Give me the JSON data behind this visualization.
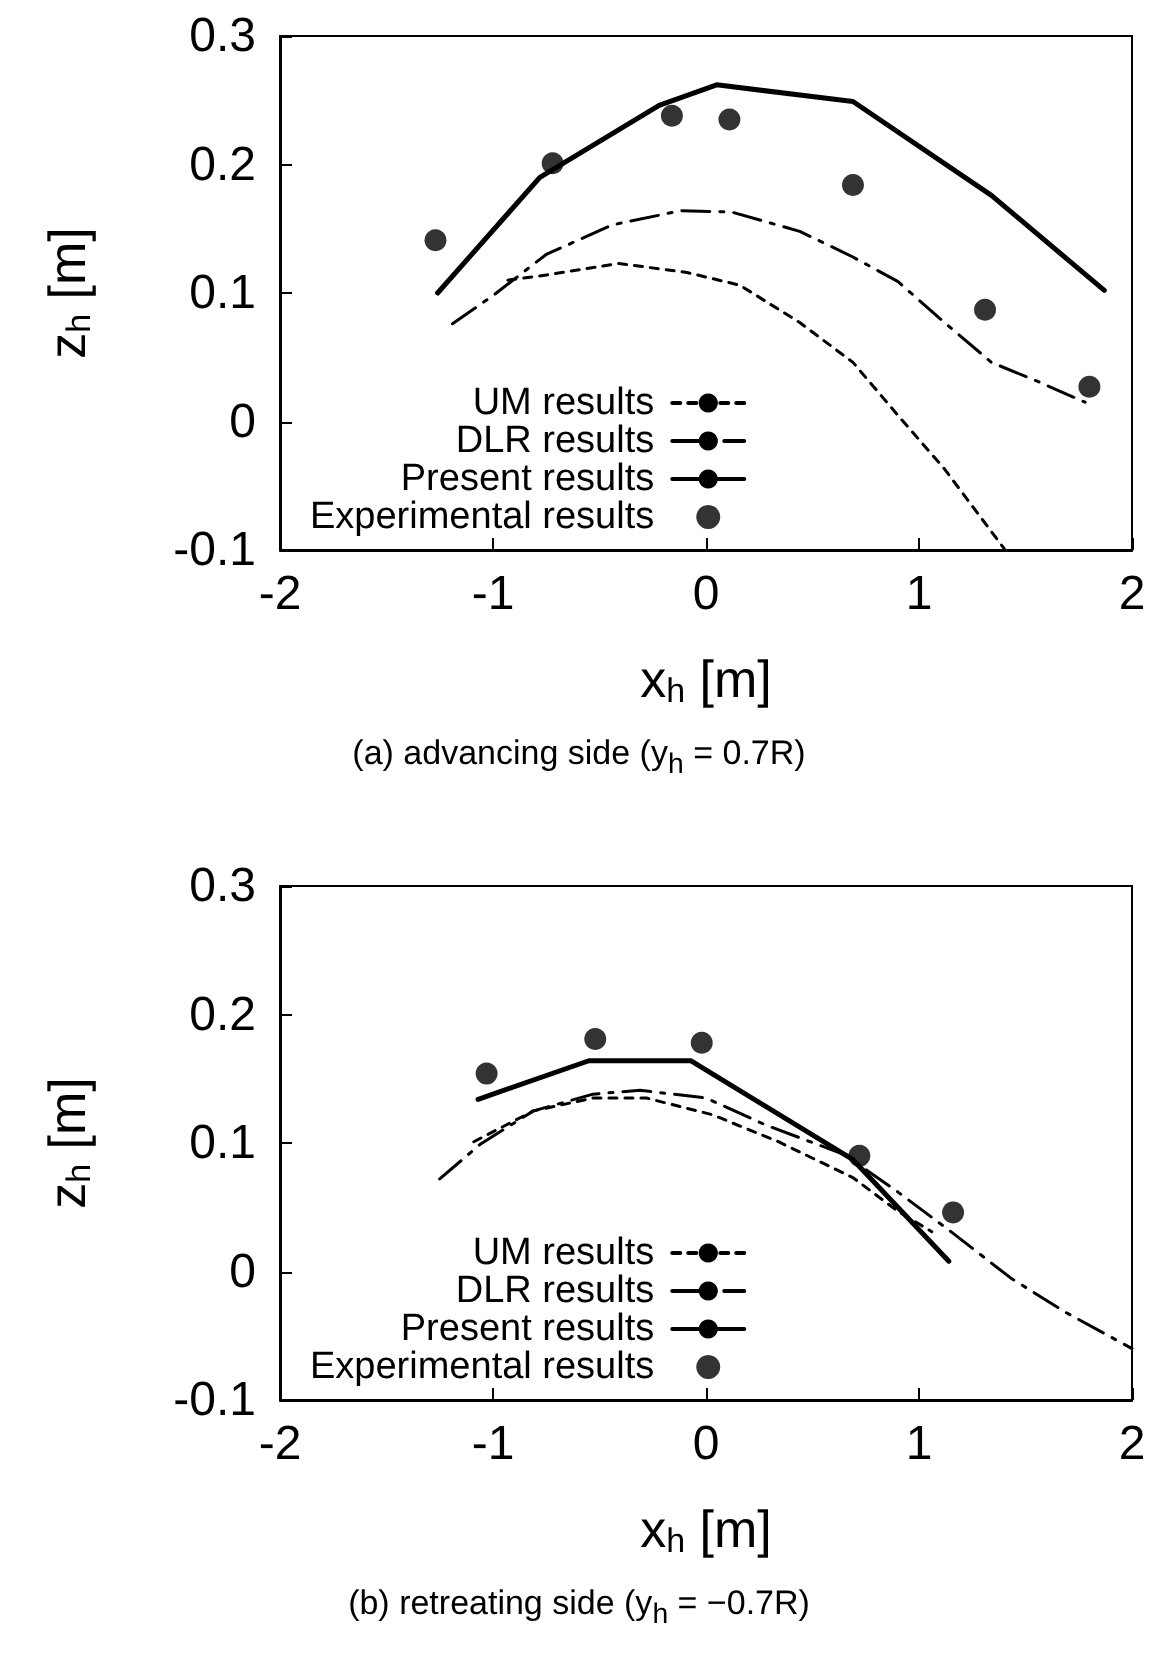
{
  "chart_data": [
    {
      "type": "line",
      "xlabel": "x$_{h}$ [m]",
      "ylabel": "z$_{h}$ [m]",
      "annotations": [
        "(a)  advancing side (y$_{h}$ = 0.7R)"
      ],
      "xlim": [
        -2,
        2
      ],
      "xticks": [
        -2,
        -1,
        0,
        1,
        2
      ],
      "ylim": [
        -0.1,
        0.3
      ],
      "yticks": [
        -0.1,
        0,
        0.1,
        0.2,
        0.3
      ],
      "legend": "bottom left",
      "series": [
        {
          "name": "UM results",
          "color": "#000000",
          "line_style": "dotted",
          "marker": "none",
          "x": [
            -0.93,
            -0.75,
            -0.41,
            -0.09,
            0.16,
            0.44,
            0.69,
            0.9,
            1.12,
            1.4
          ],
          "values": [
            0.11,
            0.114,
            0.123,
            0.116,
            0.106,
            0.077,
            0.046,
            0.005,
            -0.037,
            -0.099
          ]
        },
        {
          "name": "DLR results",
          "color": "#000000",
          "line_style": "dashed",
          "marker": "none",
          "x": [
            -1.19,
            -1.0,
            -0.75,
            -0.44,
            -0.12,
            0.12,
            0.44,
            0.69,
            0.9,
            1.12,
            1.34,
            1.56,
            1.78
          ],
          "values": [
            0.076,
            0.098,
            0.13,
            0.153,
            0.164,
            0.163,
            0.148,
            0.128,
            0.109,
            0.077,
            0.046,
            0.031,
            0.015
          ]
        },
        {
          "name": "Present results",
          "color": "#000000",
          "line_style": "solid",
          "marker": "none",
          "x": [
            -1.26,
            -0.78,
            -0.22,
            0.05,
            0.69,
            1.34,
            1.87
          ],
          "values": [
            0.1,
            0.19,
            0.246,
            0.262,
            0.249,
            0.176,
            0.102
          ]
        },
        {
          "name": "Experimental results",
          "type": "scatter",
          "color": "#000000",
          "marker": "circle",
          "x": [
            -1.27,
            -0.72,
            -0.16,
            0.11,
            0.69,
            1.31,
            1.8
          ],
          "values": [
            0.141,
            0.201,
            0.238,
            0.235,
            0.184,
            0.087,
            0.027
          ]
        }
      ]
    },
    {
      "type": "line",
      "xlabel": "x$_{h}$ [m]",
      "ylabel": "z$_{h}$ [m]",
      "annotations": [
        "(b)  retreating side (y$_{h}$ = −0.7R)"
      ],
      "xlim": [
        -2,
        2
      ],
      "xticks": [
        -2,
        -1,
        0,
        1,
        2
      ],
      "ylim": [
        -0.1,
        0.3
      ],
      "yticks": [
        -0.1,
        0,
        0.1,
        0.2,
        0.3
      ],
      "legend": "bottom left",
      "series": [
        {
          "name": "UM results",
          "color": "#000000",
          "line_style": "dotted",
          "marker": "none",
          "x": [
            -1.09,
            -0.81,
            -0.53,
            -0.28,
            0.03,
            0.34,
            0.69,
            0.9,
            1.06
          ],
          "values": [
            0.101,
            0.125,
            0.135,
            0.135,
            0.122,
            0.101,
            0.073,
            0.047,
            0.031
          ]
        },
        {
          "name": "DLR results",
          "color": "#000000",
          "line_style": "dashed",
          "marker": "none",
          "x": [
            -1.25,
            -1.06,
            -0.81,
            -0.53,
            -0.31,
            0.0,
            0.28,
            0.65,
            0.9,
            1.15,
            1.43,
            1.68,
            2.0
          ],
          "values": [
            0.072,
            0.099,
            0.125,
            0.138,
            0.141,
            0.135,
            0.114,
            0.091,
            0.062,
            0.031,
            -0.005,
            -0.031,
            -0.06
          ]
        },
        {
          "name": "Present results",
          "color": "#000000",
          "line_style": "solid",
          "marker": "none",
          "x": [
            -1.07,
            -0.55,
            -0.07,
            0.69,
            1.14
          ],
          "values": [
            0.134,
            0.164,
            0.164,
            0.087,
            0.008
          ]
        },
        {
          "name": "Experimental results",
          "type": "scatter",
          "color": "#000000",
          "marker": "circle",
          "x": [
            -1.03,
            -0.52,
            -0.02,
            0.72,
            1.16
          ],
          "values": [
            0.154,
            0.181,
            0.178,
            0.09,
            0.046
          ]
        }
      ]
    }
  ]
}
